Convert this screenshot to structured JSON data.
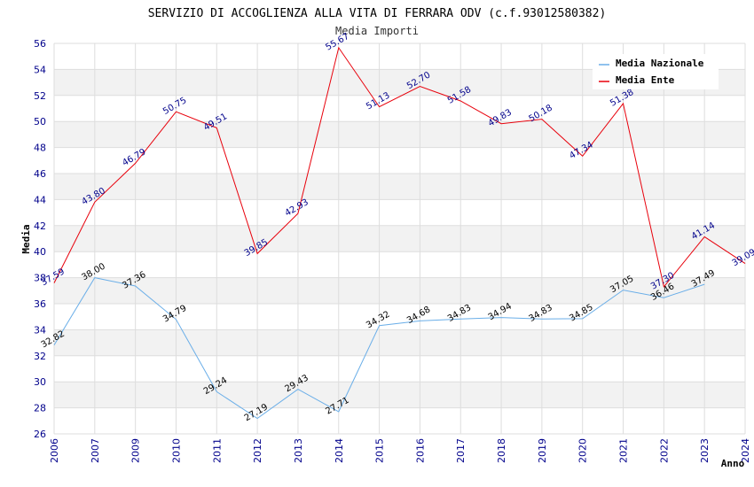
{
  "chart_data": {
    "type": "line",
    "title": "SERVIZIO DI ACCOGLIENZA ALLA VITA DI FERRARA ODV (c.f.93012580382)",
    "subtitle": "Media Importi",
    "xlabel": "Anno",
    "ylabel": "Media",
    "ylim": [
      26,
      56
    ],
    "yticks": [
      "26",
      "28",
      "30",
      "32",
      "34",
      "36",
      "38",
      "40",
      "42",
      "44",
      "46",
      "48",
      "50",
      "52",
      "54",
      "56"
    ],
    "categories": [
      "2006",
      "2007",
      "2009",
      "2010",
      "2011",
      "2012",
      "2013",
      "2014",
      "2015",
      "2016",
      "2017",
      "2018",
      "2019",
      "2020",
      "2021",
      "2022",
      "2023",
      "2024"
    ],
    "legend_position": "top-right",
    "series": [
      {
        "name": "Media Nazionale",
        "color": "#6aaee8",
        "label_color": "#000000",
        "values": [
          32.82,
          38.0,
          37.36,
          34.79,
          29.24,
          27.19,
          29.43,
          27.71,
          34.32,
          34.68,
          34.83,
          34.94,
          34.83,
          34.85,
          37.05,
          36.46,
          37.49,
          null
        ],
        "labels": [
          "32.82",
          "38.00",
          "37.36",
          "34.79",
          "29.24",
          "27.19",
          "29.43",
          "27.71",
          "34.32",
          "34.68",
          "34.83",
          "34.94",
          "34.83",
          "34.85",
          "37.05",
          "36.46",
          "37.49",
          ""
        ]
      },
      {
        "name": "Media Ente",
        "color": "#e8000b",
        "label_color": "#00008b",
        "values": [
          37.59,
          43.8,
          46.79,
          50.75,
          49.51,
          39.85,
          42.93,
          55.67,
          51.13,
          52.7,
          51.58,
          49.83,
          50.18,
          47.34,
          51.38,
          37.3,
          41.14,
          39.09
        ],
        "labels": [
          "37.59",
          "43.80",
          "46.79",
          "50.75",
          "49.51",
          "39.85",
          "42.93",
          "55.67",
          "51.13",
          "52.70",
          "51.58",
          "49.83",
          "50.18",
          "47.34",
          "51.38",
          "37.30",
          "41.14",
          "39.09"
        ]
      }
    ]
  }
}
